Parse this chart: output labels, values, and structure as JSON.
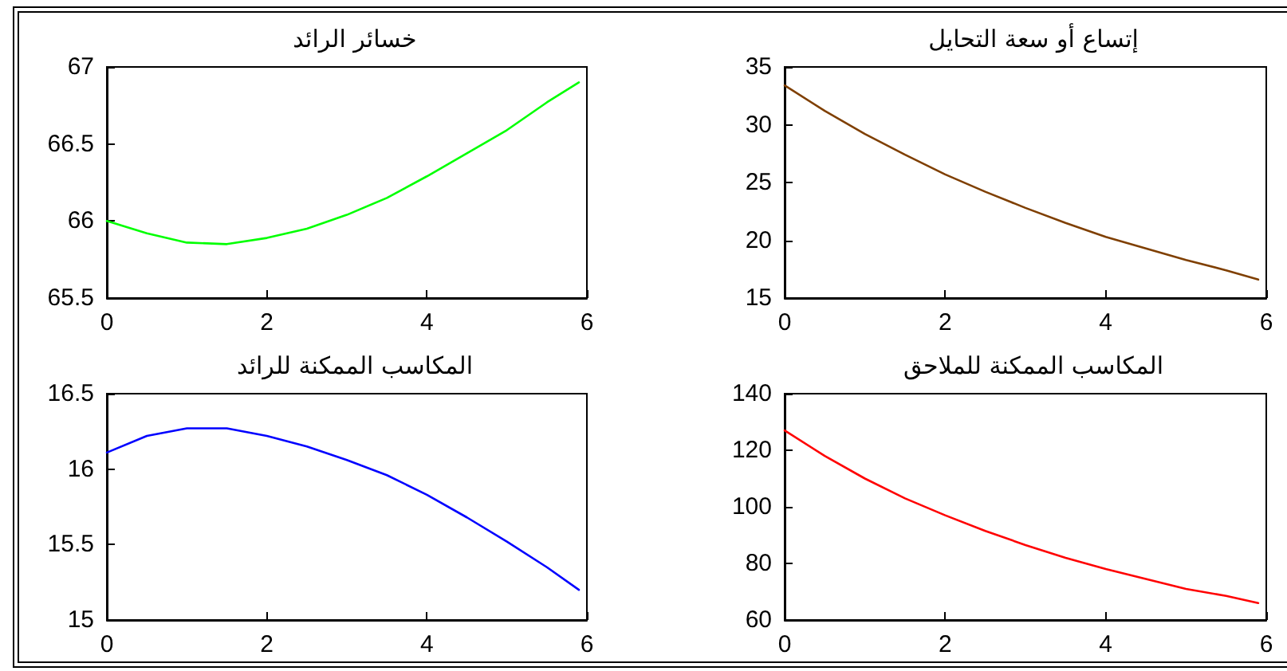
{
  "chart_data": [
    {
      "type": "line",
      "title": "خسائر الرائد",
      "x": [
        0,
        0.5,
        1,
        1.5,
        2,
        2.5,
        3,
        3.5,
        4,
        4.5,
        5,
        5.5,
        5.9
      ],
      "series": [
        {
          "color": "#00ff00",
          "values": [
            66.0,
            65.92,
            65.86,
            65.85,
            65.89,
            65.95,
            66.04,
            66.15,
            66.29,
            66.44,
            66.59,
            66.77,
            66.9
          ]
        }
      ],
      "xlim": [
        0,
        6
      ],
      "xticks": [
        0,
        2,
        4,
        6
      ],
      "ylim": [
        65.5,
        67
      ],
      "yticks": [
        65.5,
        66,
        66.5,
        67
      ],
      "grid": false,
      "marker": "none",
      "line_style": "solid"
    },
    {
      "type": "line",
      "title": "إتساع أو سعة التحايل",
      "x": [
        0,
        0.5,
        1,
        1.5,
        2,
        2.5,
        3,
        3.5,
        4,
        4.5,
        5,
        5.5,
        5.9
      ],
      "series": [
        {
          "color": "#7f3f00",
          "values": [
            33.4,
            31.2,
            29.2,
            27.4,
            25.7,
            24.2,
            22.8,
            21.5,
            20.3,
            19.3,
            18.3,
            17.4,
            16.6
          ]
        }
      ],
      "xlim": [
        0,
        6
      ],
      "xticks": [
        0,
        2,
        4,
        6
      ],
      "ylim": [
        15,
        35
      ],
      "yticks": [
        15,
        20,
        25,
        30,
        35
      ],
      "grid": false,
      "marker": "none",
      "line_style": "solid"
    },
    {
      "type": "line",
      "title": "المكاسب الممكنة للرائد",
      "x": [
        0,
        0.5,
        1,
        1.5,
        2,
        2.5,
        3,
        3.5,
        4,
        4.5,
        5,
        5.5,
        5.9
      ],
      "series": [
        {
          "color": "#0000ff",
          "values": [
            16.11,
            16.22,
            16.27,
            16.27,
            16.22,
            16.15,
            16.06,
            15.96,
            15.83,
            15.68,
            15.52,
            15.35,
            15.2
          ]
        }
      ],
      "xlim": [
        0,
        6
      ],
      "xticks": [
        0,
        2,
        4,
        6
      ],
      "ylim": [
        15,
        16.5
      ],
      "yticks": [
        15,
        15.5,
        16,
        16.5
      ],
      "grid": false,
      "marker": "none",
      "line_style": "solid"
    },
    {
      "type": "line",
      "title": "المكاسب الممكنة للملاحق",
      "x": [
        0,
        0.5,
        1,
        1.5,
        2,
        2.5,
        3,
        3.5,
        4,
        4.5,
        5,
        5.5,
        5.9
      ],
      "series": [
        {
          "color": "#ff0000",
          "values": [
            127,
            118,
            110,
            103,
            97,
            91.5,
            86.5,
            82,
            78,
            74.5,
            71,
            68.5,
            66
          ]
        }
      ],
      "xlim": [
        0,
        6
      ],
      "xticks": [
        0,
        2,
        4,
        6
      ],
      "ylim": [
        60,
        140
      ],
      "yticks": [
        60,
        80,
        100,
        120,
        140
      ],
      "grid": false,
      "marker": "none",
      "line_style": "solid"
    }
  ]
}
